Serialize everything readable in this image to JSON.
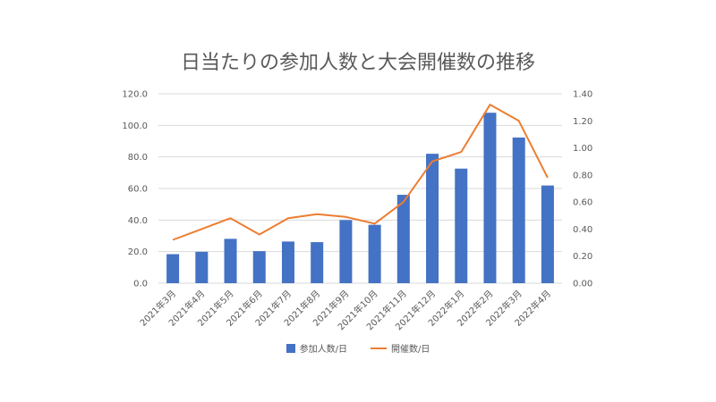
{
  "chart_data": {
    "type": "bar",
    "title": "日当たりの参加人数と大会開催数の推移",
    "categories": [
      "2021年3月",
      "2021年4月",
      "2021年5月",
      "2021年6月",
      "2021年7月",
      "2021年8月",
      "2021年9月",
      "2021年10月",
      "2021年11月",
      "2021年12月",
      "2022年1月",
      "2022年2月",
      "2022年3月",
      "2022年4月"
    ],
    "series": [
      {
        "name": "参加人数/日",
        "type": "bar",
        "axis": "left",
        "color": "#4472C4",
        "values": [
          18.4,
          19.9,
          28.1,
          20.3,
          26.4,
          26.0,
          40.0,
          37.0,
          56.0,
          82.0,
          72.6,
          108.0,
          92.3,
          61.9
        ]
      },
      {
        "name": "開催数/日",
        "type": "line",
        "axis": "right",
        "color": "#ED7D31",
        "values": [
          0.32,
          0.4,
          0.48,
          0.36,
          0.48,
          0.51,
          0.49,
          0.44,
          0.6,
          0.9,
          0.97,
          1.32,
          1.2,
          0.78
        ]
      }
    ],
    "y_left": {
      "min": 0,
      "max": 120,
      "ticks": [
        "0.0",
        "20.0",
        "40.0",
        "60.0",
        "80.0",
        "100.0",
        "120.0"
      ]
    },
    "y_right": {
      "min": 0,
      "max": 1.4,
      "ticks": [
        "0.00",
        "0.20",
        "0.40",
        "0.60",
        "0.80",
        "1.00",
        "1.20",
        "1.40"
      ]
    },
    "grid": true,
    "legend_position": "bottom"
  }
}
